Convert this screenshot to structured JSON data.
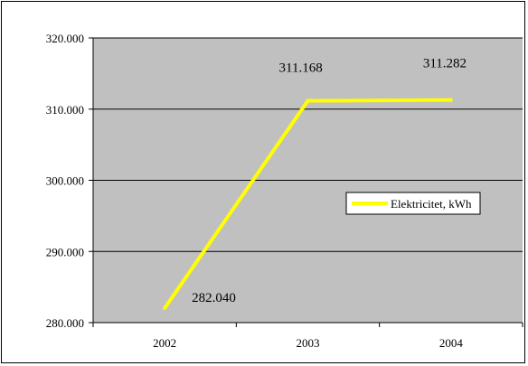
{
  "chart_data": {
    "type": "line",
    "categories": [
      "2002",
      "2003",
      "2004"
    ],
    "series": [
      {
        "name": "Elektricitet, kWh",
        "values": [
          282040,
          311168,
          311282
        ],
        "data_labels": [
          "282.040",
          "311.168",
          "311.282"
        ],
        "color": "#ffff00"
      }
    ],
    "ylim": [
      280000,
      320000
    ],
    "yticks": [
      280000,
      290000,
      300000,
      310000,
      320000
    ],
    "ytick_labels": [
      "280.000",
      "290.000",
      "300.000",
      "310.000",
      "320.000"
    ],
    "plot_background": "#c0c0c0",
    "grid": true,
    "legend_position": "right"
  }
}
